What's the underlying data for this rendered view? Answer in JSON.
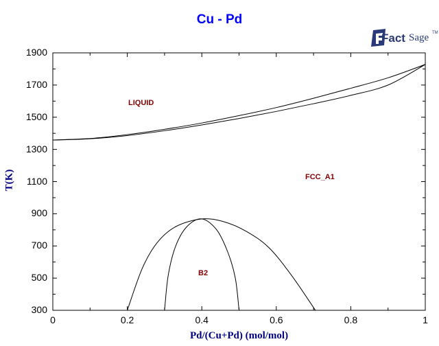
{
  "header": {
    "title": "Cu - Pd"
  },
  "logo": {
    "fact": "Fact",
    "sage": "Sage",
    "tm": "TM"
  },
  "axes": {
    "xlabel": "Pd/(Cu+Pd) (mol/mol)",
    "ylabel": "T(K)",
    "xticks": [
      "0",
      "0.2",
      "0.4",
      "0.6",
      "0.8",
      "1"
    ],
    "yticks": [
      "1900",
      "1700",
      "1500",
      "1300",
      "1100",
      "900",
      "700",
      "500",
      "300"
    ]
  },
  "regions": {
    "liquid": "LIQUID",
    "fcc": "FCC_A1",
    "b2": "B2"
  },
  "colors": {
    "title": "#0000ff",
    "axis_label": "#000080",
    "region_label": "#800000",
    "line": "#000000"
  },
  "chart_data": {
    "type": "line",
    "title": "Cu - Pd",
    "xlabel": "Pd/(Cu+Pd) (mol/mol)",
    "ylabel": "T(K)",
    "xlim": [
      0,
      1
    ],
    "ylim": [
      300,
      1900
    ],
    "grid": false,
    "region_labels": [
      {
        "text": "LIQUID",
        "x": 0.23,
        "y": 1585
      },
      {
        "text": "FCC_A1",
        "x": 0.72,
        "y": 1130
      },
      {
        "text": "B2",
        "x": 0.4,
        "y": 530
      }
    ],
    "series": [
      {
        "name": "liquidus",
        "x": [
          0,
          0.1,
          0.2,
          0.3,
          0.4,
          0.5,
          0.6,
          0.7,
          0.8,
          0.9,
          1.0
        ],
        "y": [
          1358,
          1368,
          1392,
          1425,
          1464,
          1510,
          1560,
          1618,
          1680,
          1745,
          1828
        ]
      },
      {
        "name": "solidus",
        "x": [
          0,
          0.1,
          0.2,
          0.3,
          0.4,
          0.5,
          0.6,
          0.7,
          0.8,
          0.9,
          1.0
        ],
        "y": [
          1358,
          1366,
          1386,
          1416,
          1452,
          1492,
          1536,
          1584,
          1636,
          1700,
          1828
        ]
      },
      {
        "name": "B2 outer boundary",
        "x": [
          0.2,
          0.24,
          0.28,
          0.33,
          0.4,
          0.46,
          0.52,
          0.58,
          0.64,
          0.705
        ],
        "y": [
          300,
          560,
          720,
          820,
          868,
          850,
          790,
          690,
          520,
          300
        ]
      },
      {
        "name": "B2 inner boundary",
        "x": [
          0.3,
          0.31,
          0.33,
          0.36,
          0.4,
          0.44,
          0.47,
          0.49,
          0.5
        ],
        "y": [
          300,
          520,
          700,
          820,
          868,
          800,
          660,
          500,
          300
        ]
      }
    ]
  }
}
